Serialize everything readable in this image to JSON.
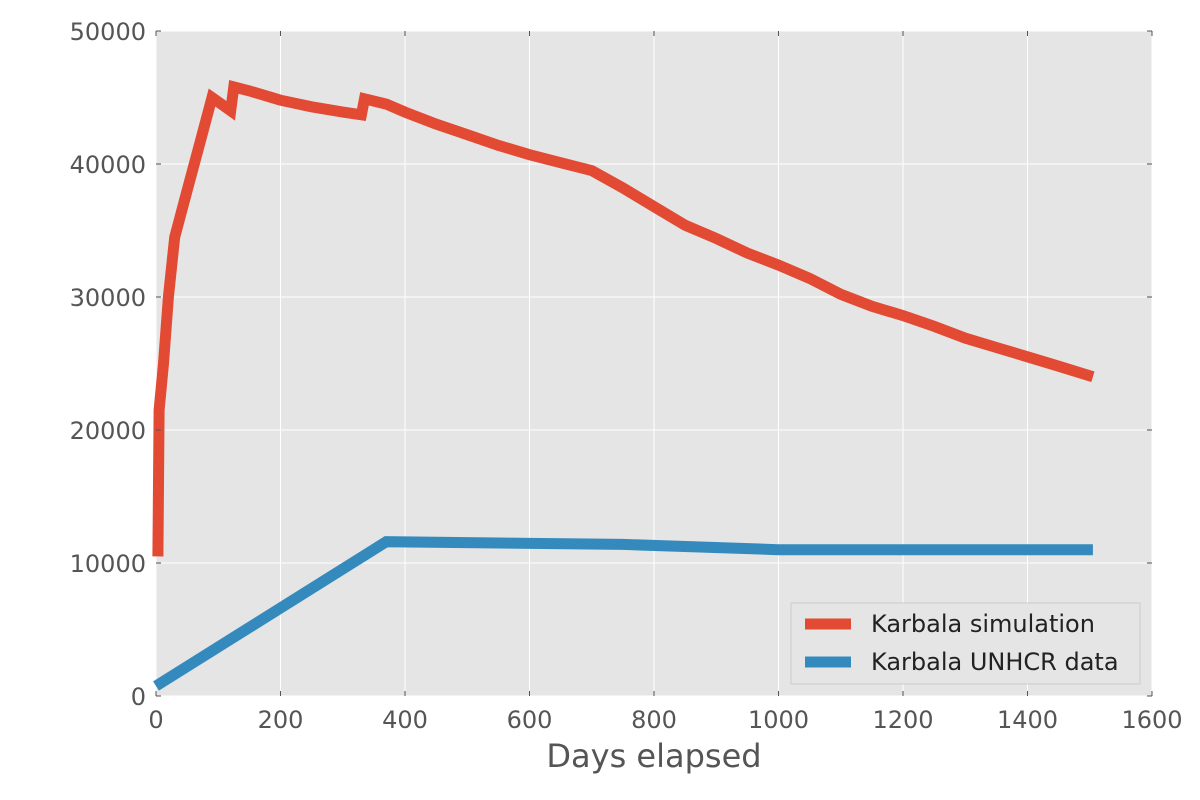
{
  "chart_data": {
    "type": "line",
    "title": "",
    "xlabel": "Days elapsed",
    "ylabel": "",
    "xlim": [
      0,
      1600
    ],
    "ylim": [
      0,
      50000
    ],
    "x_ticks": [
      0,
      200,
      400,
      600,
      800,
      1000,
      1200,
      1400,
      1600
    ],
    "x_tick_labels": [
      "0",
      "200",
      "400",
      "600",
      "800",
      "1000",
      "1200",
      "1400",
      "1600"
    ],
    "y_ticks": [
      0,
      10000,
      20000,
      30000,
      40000,
      50000
    ],
    "y_tick_labels": [
      "0",
      "10000",
      "20000",
      "30000",
      "40000",
      "50000"
    ],
    "grid": true,
    "legend_position": "lower-right",
    "series": [
      {
        "name": "Karbala simulation",
        "color": "#e24a33",
        "x": [
          3,
          5,
          12,
          20,
          30,
          50,
          70,
          90,
          105,
          120,
          125,
          150,
          200,
          250,
          300,
          330,
          335,
          370,
          400,
          450,
          500,
          550,
          600,
          650,
          700,
          750,
          800,
          850,
          900,
          950,
          1000,
          1050,
          1100,
          1150,
          1200,
          1250,
          1300,
          1350,
          1400,
          1450,
          1505
        ],
        "y": [
          10500,
          21500,
          25000,
          30000,
          34500,
          38000,
          41500,
          45000,
          44500,
          44000,
          45800,
          45500,
          44800,
          44300,
          43900,
          43700,
          44900,
          44500,
          43900,
          43000,
          42200,
          41400,
          40700,
          40100,
          39500,
          38200,
          36800,
          35400,
          34400,
          33300,
          32400,
          31400,
          30200,
          29300,
          28600,
          27800,
          26900,
          26200,
          25500,
          24800,
          24000
        ]
      },
      {
        "name": "Karbala UNHCR data",
        "color": "#348abd",
        "x": [
          0,
          370,
          750,
          1000,
          1505
        ],
        "y": [
          750,
          11600,
          11400,
          11000,
          11000
        ]
      }
    ]
  }
}
